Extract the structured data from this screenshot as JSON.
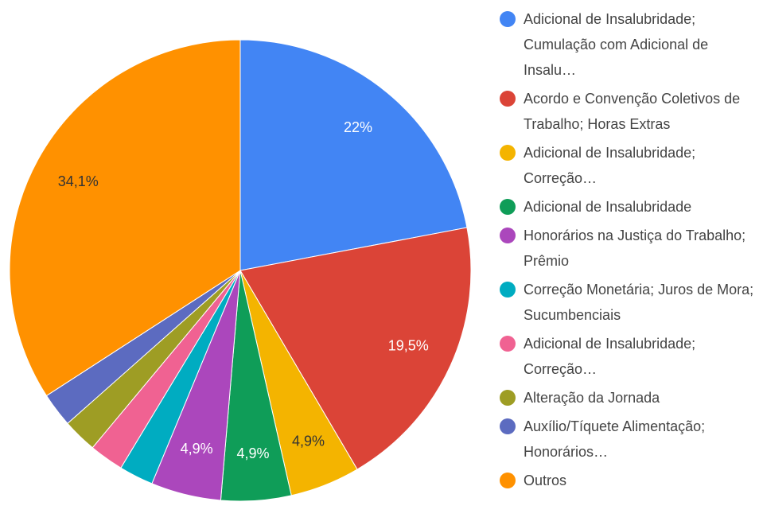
{
  "chart_data": {
    "type": "pie",
    "categories": [
      "Adicional de Insalubridade; Cumulação com Adicional de Insalu…",
      "Acordo e Convenção Coletivos de Trabalho; Horas Extras",
      "Adicional de Insalubridade; Correção…",
      "Adicional de Insalubridade",
      "Honorários na Justiça do Trabalho; Prêmio",
      "Correção Monetária; Juros de Mora; Sucumbenciais",
      "Adicional de Insalubridade; Correção…",
      "Alteração da Jornada",
      "Auxílio/Tíquete Alimentação; Honorários…",
      "Outros"
    ],
    "values": [
      22,
      19.5,
      4.9,
      4.9,
      4.9,
      2.4,
      2.4,
      2.4,
      2.4,
      34.1
    ],
    "value_labels": [
      "22%",
      "19,5%",
      "4,9%",
      "4,9%",
      "4,9%",
      null,
      null,
      null,
      null,
      "34,1%"
    ],
    "colors": [
      "#4285f4",
      "#db4437",
      "#f4b400",
      "#0f9d58",
      "#ab47bc",
      "#00acc1",
      "#f06292",
      "#9e9d24",
      "#5c6bc0",
      "#ff9100"
    ]
  }
}
